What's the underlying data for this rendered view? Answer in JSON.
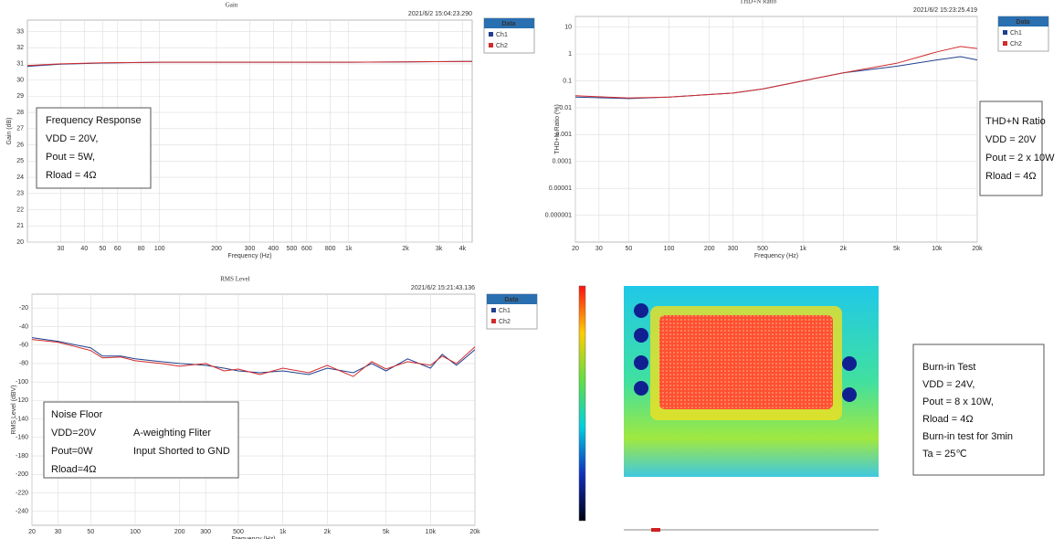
{
  "chart_data": [
    {
      "type": "line",
      "title": "Gain",
      "subtitle": "2021/6/2 15:04:23.290",
      "x_label": "Frequency (Hz)",
      "y_label": "Gain (dB)",
      "legend_title": "Data",
      "log_x": true,
      "log_y": false,
      "grid": true,
      "x": [
        20,
        30,
        50,
        100,
        200,
        500,
        1000,
        2000,
        4500
      ],
      "series": [
        {
          "name": "Ch1",
          "color": "#1f3f8f",
          "values": [
            30.85,
            30.98,
            31.05,
            31.1,
            31.1,
            31.1,
            31.1,
            31.12,
            31.15
          ]
        },
        {
          "name": "Ch2",
          "color": "#d22b2b",
          "values": [
            30.9,
            31.0,
            31.06,
            31.1,
            31.1,
            31.1,
            31.1,
            31.12,
            31.15
          ]
        }
      ],
      "xlim": [
        20,
        4500
      ],
      "ylim": [
        20,
        33.7
      ],
      "xticks": [
        30,
        40,
        50,
        60,
        80,
        100,
        200,
        300,
        400,
        500,
        600,
        800,
        {
          "value": 1000,
          "label": "1k"
        },
        {
          "value": 2000,
          "label": "2k"
        },
        {
          "value": 3000,
          "label": "3k"
        },
        {
          "value": 4000,
          "label": "4k"
        }
      ],
      "yticks": [
        20,
        21,
        22,
        23,
        24,
        25,
        26,
        27,
        28,
        29,
        30,
        31,
        32,
        33
      ],
      "annotation": [
        "Frequency Response",
        "VDD = 20V,",
        "Pout = 5W,",
        "Rload = 4Ω"
      ]
    },
    {
      "type": "line",
      "title": "THD+N Ratio",
      "subtitle": "2021/6/2 15:23:25.419",
      "x_label": "Frequency (Hz)",
      "y_label": "THD+N Ratio (%)",
      "legend_title": "Data",
      "log_x": true,
      "log_y": true,
      "grid": true,
      "x": [
        20,
        50,
        100,
        300,
        500,
        1000,
        2000,
        5000,
        10000,
        15000,
        20000
      ],
      "series": [
        {
          "name": "Ch1",
          "color": "#1f3f8f",
          "values": [
            0.025,
            0.022,
            0.025,
            0.035,
            0.05,
            0.1,
            0.2,
            0.35,
            0.6,
            0.8,
            0.6
          ]
        },
        {
          "name": "Ch2",
          "color": "#d22b2b",
          "values": [
            0.028,
            0.023,
            0.025,
            0.035,
            0.05,
            0.1,
            0.2,
            0.45,
            1.2,
            1.9,
            1.6
          ]
        }
      ],
      "xlim": [
        20,
        20000
      ],
      "ylim": [
        1e-07,
        25
      ],
      "xticks": [
        20,
        30,
        50,
        100,
        200,
        300,
        500,
        {
          "value": 1000,
          "label": "1k"
        },
        {
          "value": 2000,
          "label": "2k"
        },
        {
          "value": 5000,
          "label": "5k"
        },
        {
          "value": 10000,
          "label": "10k"
        },
        {
          "value": 20000,
          "label": "20k"
        }
      ],
      "yticks": [
        10,
        1,
        0.1,
        0.01,
        0.001,
        0.0001,
        1e-05,
        1e-06
      ],
      "annotation": [
        "THD+N Ratio",
        "VDD = 20V",
        "Pout = 2 x 10W",
        "Rload = 4Ω"
      ]
    },
    {
      "type": "line",
      "title": "RMS Level",
      "subtitle": "2021/6/2 15:21:43.136",
      "x_label": "Frequency (Hz)",
      "y_label": "RMS Level (dBV)",
      "legend_title": "Data",
      "log_x": true,
      "log_y": false,
      "grid": true,
      "x": [
        20,
        30,
        40,
        50,
        60,
        80,
        100,
        150,
        200,
        300,
        400,
        500,
        700,
        1000,
        1500,
        2000,
        3000,
        4000,
        5000,
        7000,
        10000,
        12000,
        15000,
        20000
      ],
      "series": [
        {
          "name": "Ch1",
          "color": "#1f3f8f",
          "values": [
            -52,
            -56,
            -60,
            -63,
            -72,
            -72,
            -75,
            -78,
            -80,
            -82,
            -85,
            -88,
            -90,
            -88,
            -92,
            -85,
            -90,
            -80,
            -88,
            -75,
            -85,
            -70,
            -82,
            -65
          ]
        },
        {
          "name": "Ch2",
          "color": "#d22b2b",
          "values": [
            -54,
            -57,
            -62,
            -66,
            -74,
            -73,
            -77,
            -80,
            -83,
            -80,
            -88,
            -86,
            -92,
            -85,
            -90,
            -82,
            -94,
            -78,
            -86,
            -78,
            -82,
            -72,
            -80,
            -62
          ]
        }
      ],
      "xlim": [
        20,
        20000
      ],
      "ylim": [
        -255,
        -5
      ],
      "xticks": [
        20,
        30,
        50,
        100,
        200,
        300,
        500,
        {
          "value": 1000,
          "label": "1k"
        },
        {
          "value": 2000,
          "label": "2k"
        },
        {
          "value": 5000,
          "label": "5k"
        },
        {
          "value": 10000,
          "label": "10k"
        },
        {
          "value": 20000,
          "label": "20k"
        }
      ],
      "yticks": [
        -20,
        -40,
        -60,
        -80,
        -100,
        -120,
        -140,
        -160,
        -180,
        -200,
        -220,
        -240
      ],
      "annotation": [
        "Noise Floor",
        "VDD=20V",
        "Pout=0W",
        "Rload=4Ω",
        "A-weighting Fliter",
        "Input Shorted to GND"
      ]
    }
  ],
  "thermal_panel": {
    "notes": [
      "Burn-in Test",
      "VDD = 24V,",
      "Pout = 8 x 10W,",
      "Rload = 4Ω",
      "Burn-in test for 3min",
      "Ta = 25℃"
    ]
  }
}
